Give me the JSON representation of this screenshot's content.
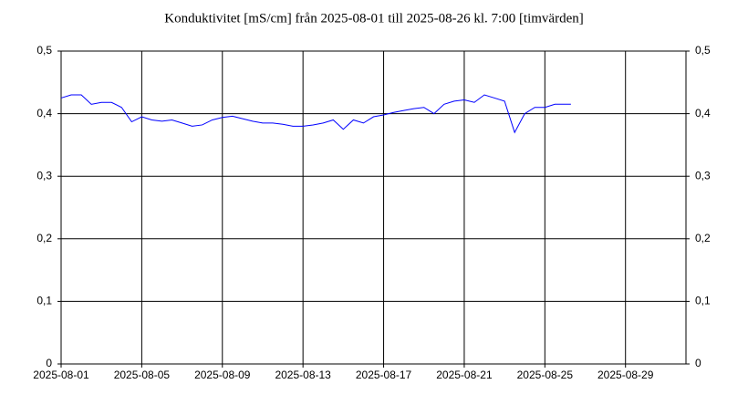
{
  "chart_data": {
    "type": "line",
    "title": "Konduktivitet [mS/cm] från 2025-08-01 till 2025-08-26 kl. 7:00 [timvärden]",
    "x": [
      "2025-08-01T00:00",
      "2025-08-01T12:00",
      "2025-08-02T00:00",
      "2025-08-02T12:00",
      "2025-08-03T00:00",
      "2025-08-03T12:00",
      "2025-08-04T00:00",
      "2025-08-04T12:00",
      "2025-08-05T00:00",
      "2025-08-05T12:00",
      "2025-08-06T00:00",
      "2025-08-06T12:00",
      "2025-08-07T00:00",
      "2025-08-07T12:00",
      "2025-08-08T00:00",
      "2025-08-08T12:00",
      "2025-08-09T00:00",
      "2025-08-09T12:00",
      "2025-08-10T00:00",
      "2025-08-10T12:00",
      "2025-08-11T00:00",
      "2025-08-11T12:00",
      "2025-08-12T00:00",
      "2025-08-12T12:00",
      "2025-08-13T00:00",
      "2025-08-13T12:00",
      "2025-08-14T00:00",
      "2025-08-14T12:00",
      "2025-08-15T00:00",
      "2025-08-15T12:00",
      "2025-08-16T00:00",
      "2025-08-16T12:00",
      "2025-08-17T00:00",
      "2025-08-17T12:00",
      "2025-08-18T00:00",
      "2025-08-18T12:00",
      "2025-08-19T00:00",
      "2025-08-19T12:00",
      "2025-08-20T00:00",
      "2025-08-20T12:00",
      "2025-08-21T00:00",
      "2025-08-21T12:00",
      "2025-08-22T00:00",
      "2025-08-22T12:00",
      "2025-08-23T00:00",
      "2025-08-23T12:00",
      "2025-08-24T00:00",
      "2025-08-24T12:00",
      "2025-08-25T00:00",
      "2025-08-25T12:00",
      "2025-08-26T00:00",
      "2025-08-26T07:00"
    ],
    "series": [
      {
        "name": "Konduktivitet",
        "color": "#0000ff",
        "values": [
          0.425,
          0.43,
          0.43,
          0.415,
          0.418,
          0.418,
          0.41,
          0.387,
          0.395,
          0.39,
          0.388,
          0.39,
          0.385,
          0.38,
          0.382,
          0.39,
          0.394,
          0.396,
          0.392,
          0.388,
          0.385,
          0.385,
          0.383,
          0.38,
          0.38,
          0.382,
          0.385,
          0.39,
          0.375,
          0.39,
          0.385,
          0.395,
          0.398,
          0.402,
          0.405,
          0.408,
          0.41,
          0.4,
          0.415,
          0.42,
          0.422,
          0.418,
          0.43,
          0.425,
          0.42,
          0.37,
          0.4,
          0.41,
          0.41,
          0.415,
          0.415,
          0.415
        ]
      }
    ],
    "xlim": [
      "2025-08-01",
      "2025-09-01"
    ],
    "xticks": [
      "2025-08-01",
      "2025-08-05",
      "2025-08-09",
      "2025-08-13",
      "2025-08-17",
      "2025-08-21",
      "2025-08-25",
      "2025-08-29"
    ],
    "ylim": [
      0,
      0.5
    ],
    "yticks": [
      0,
      {
        "value": 0.1,
        "label": "0,1"
      },
      {
        "value": 0.2,
        "label": "0,2"
      },
      {
        "value": 0.3,
        "label": "0,3"
      },
      {
        "value": 0.4,
        "label": "0,4"
      },
      {
        "value": 0.5,
        "label": "0,5"
      }
    ],
    "grid": true
  }
}
